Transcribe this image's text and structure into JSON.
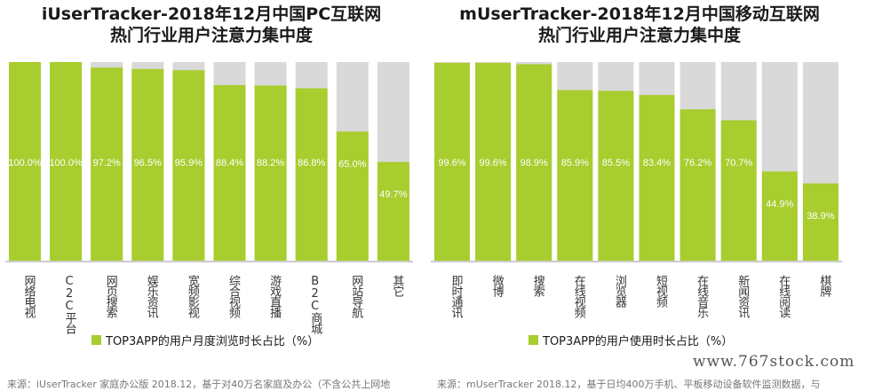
{
  "colors": {
    "bar": "#a8cd2e",
    "track": "#d9d9d9",
    "axis": "#999999"
  },
  "left_title_line1": "iUserTracker-2018年12月中国PC互联网",
  "left_title_line2": "热门行业用户注意力集中度",
  "right_title_line1": "mUserTracker-2018年12月中国移动互联网",
  "right_title_line2": "热门行业用户注意力集中度",
  "left_legend": "TOP3APP的用户月度浏览时长占比（%）",
  "right_legend": "TOP3APP的用户使用时长占比（%）",
  "left_source": "来源：iUserTracker 家庭办公版 2018.12，基于对40万名家庭及办公（不含公共上网地",
  "right_source": "来源：mUserTracker 2018.12，基于日均400万手机、平板移动设备软件监测数据，与",
  "watermark": "www.767stock.com",
  "chart_data": [
    {
      "type": "bar",
      "title": "iUserTracker-2018年12月中国PC互联网 热门行业用户注意力集中度",
      "categories": [
        "网络电视",
        "C2C平台",
        "网页搜索",
        "娱乐资讯",
        "宽频影视",
        "综合视频",
        "游戏直播",
        "B2C商城",
        "网站导航",
        "其它"
      ],
      "values": [
        100.0,
        100.0,
        97.2,
        96.5,
        95.9,
        88.4,
        88.2,
        86.8,
        65.0,
        49.7
      ],
      "labels": [
        "100.0%",
        "100.0%",
        "97.2%",
        "96.5%",
        "95.9%",
        "88.4%",
        "88.2%",
        "86.8%",
        "65.0%",
        "49.7%"
      ],
      "legend": "TOP3APP的用户月度浏览时长占比（%）",
      "ylim": [
        0,
        100
      ]
    },
    {
      "type": "bar",
      "title": "mUserTracker-2018年12月中国移动互联网 热门行业用户注意力集中度",
      "categories": [
        "即时通讯",
        "微博",
        "搜索",
        "在线视频",
        "浏览器",
        "短视频",
        "在线音乐",
        "新闻资讯",
        "在线阅读",
        "棋牌"
      ],
      "values": [
        99.6,
        99.6,
        98.9,
        85.9,
        85.5,
        83.4,
        76.2,
        70.7,
        44.9,
        38.9
      ],
      "labels": [
        "99.6%",
        "99.6%",
        "98.9%",
        "85.9%",
        "85.5%",
        "83.4%",
        "76.2%",
        "70.7%",
        "44.9%",
        "38.9%"
      ],
      "legend": "TOP3APP的用户使用时长占比（%）",
      "ylim": [
        0,
        100
      ]
    }
  ]
}
